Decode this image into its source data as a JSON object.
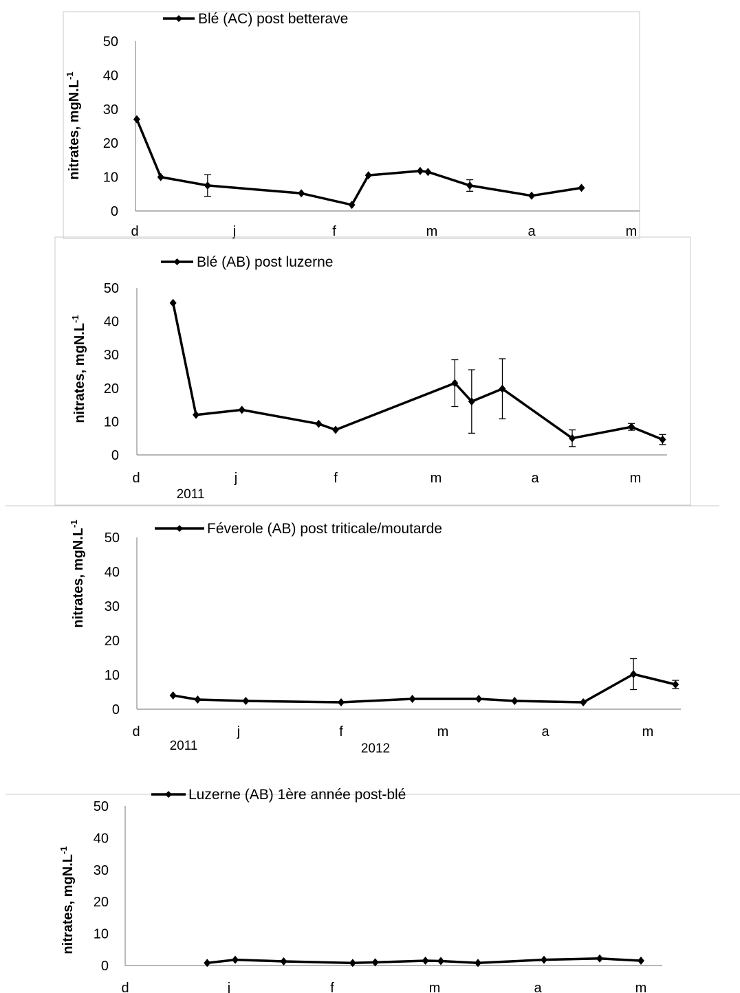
{
  "chart_data": [
    {
      "type": "line",
      "ylabel": "nitrates, mgN.L-1",
      "ylim": [
        0,
        50
      ],
      "yticks": [
        0,
        10,
        20,
        30,
        40,
        50
      ],
      "x_tick_labels": [
        "d",
        "j",
        "f",
        "m",
        "a",
        "m"
      ],
      "year_labels": [],
      "series": [
        {
          "name": "Blé (AC) post betterave",
          "x": [
            0.02,
            0.26,
            0.73,
            1.67,
            2.18,
            2.35,
            2.88,
            2.96,
            3.38,
            4.0,
            4.5
          ],
          "y": [
            27,
            10,
            7.5,
            5.2,
            1.8,
            10.5,
            11.8,
            11.5,
            7.5,
            4.5,
            6.8
          ],
          "err": [
            0,
            0,
            3.2,
            0,
            0,
            0,
            0,
            0,
            1.7,
            0,
            0
          ]
        }
      ]
    },
    {
      "type": "line",
      "ylabel": "nitrates, mgN.L-1",
      "ylim": [
        0,
        50
      ],
      "yticks": [
        0,
        10,
        20,
        30,
        40,
        50
      ],
      "x_tick_labels": [
        "d",
        "j",
        "f",
        "m",
        "a",
        "m"
      ],
      "year_labels": [
        "2011"
      ],
      "series": [
        {
          "name": "Blé (AB) post luzerne",
          "x": [
            0.37,
            0.6,
            1.06,
            1.83,
            2.0,
            3.19,
            3.36,
            3.67,
            4.37,
            4.96,
            5.27
          ],
          "y": [
            45.5,
            12,
            13.5,
            9.3,
            7.5,
            21.5,
            16,
            19.8,
            5,
            8.4,
            4.6
          ],
          "err": [
            0,
            0,
            0,
            0,
            0,
            7,
            9.5,
            9,
            2.5,
            1,
            1.5
          ]
        }
      ]
    },
    {
      "type": "line",
      "ylabel": "nitrates, mgN.L-1",
      "ylim": [
        0,
        50
      ],
      "yticks": [
        0,
        10,
        20,
        30,
        40,
        50
      ],
      "x_tick_labels": [
        "d",
        "j",
        "f",
        "m",
        "a",
        "m"
      ],
      "year_labels": [
        "2011",
        "2012"
      ],
      "series": [
        {
          "name": "Féverole (AB) post triticale/moutarde",
          "x": [
            0.36,
            0.6,
            1.07,
            2.0,
            2.7,
            3.35,
            3.7,
            4.37,
            4.86,
            5.27
          ],
          "y": [
            4,
            2.8,
            2.4,
            2,
            3,
            3,
            2.4,
            2,
            10.2,
            7.2
          ],
          "err": [
            0,
            0,
            0,
            0,
            0,
            0,
            0,
            0,
            4.5,
            1.2
          ]
        }
      ]
    },
    {
      "type": "line",
      "ylabel": "nitrates, mgN.L-1",
      "ylim": [
        0,
        50
      ],
      "yticks": [
        0,
        10,
        20,
        30,
        40,
        50
      ],
      "x_tick_labels": [
        "d",
        "j",
        "f",
        "m",
        "a",
        "m"
      ],
      "year_labels": [],
      "series": [
        {
          "name": "Luzerne (AB) 1ère année post-blé",
          "x": [
            0.79,
            1.06,
            1.53,
            2.2,
            2.42,
            2.91,
            3.06,
            3.42,
            4.06,
            4.6,
            5.0
          ],
          "y": [
            0.8,
            1.8,
            1.3,
            0.8,
            1,
            1.5,
            1.4,
            0.8,
            1.8,
            2.2,
            1.5
          ],
          "err": [
            0,
            0,
            0,
            0,
            0,
            0,
            0,
            0,
            0,
            0,
            0
          ]
        }
      ]
    }
  ]
}
